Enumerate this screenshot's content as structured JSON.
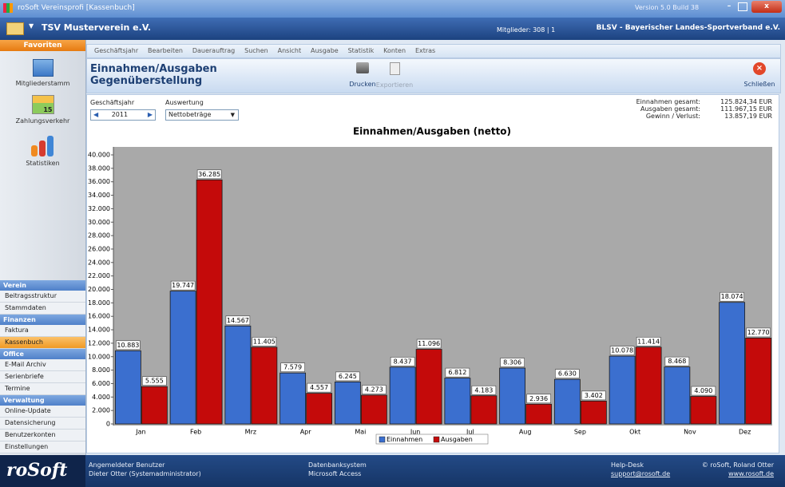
{
  "window": {
    "title": "roSoft Vereinsprofi [Kassenbuch]",
    "version": "Version 5.0  Build 38"
  },
  "club_bar": {
    "club": "TSV Musterverein e.V.",
    "members": "Mitglieder: 308 | 1",
    "association": "BLSV - Bayerischer Landes-Sportverband e.V."
  },
  "sidebar": {
    "favorites_title": "Favoriten",
    "favorites": [
      {
        "label": "Mitgliederstamm"
      },
      {
        "label": "Zahlungsverkehr",
        "badge": "15"
      },
      {
        "label": "Statistiken"
      }
    ],
    "sections": [
      {
        "title": "Verein",
        "items": [
          "Beitragsstruktur",
          "Stammdaten"
        ]
      },
      {
        "title": "Finanzen",
        "items": [
          "Faktura",
          "Kassenbuch"
        ]
      },
      {
        "title": "Office",
        "items": [
          "E-Mail Archiv",
          "Serienbriefe",
          "Termine"
        ]
      },
      {
        "title": "Verwaltung",
        "items": [
          "Online-Update",
          "Datensicherung",
          "Benutzerkonten",
          "Einstellungen"
        ]
      }
    ],
    "logo": "roSoft"
  },
  "menu": [
    "Geschäftsjahr",
    "Bearbeiten",
    "Dauerauftrag",
    "Suchen",
    "Ansicht",
    "Ausgabe",
    "Statistik",
    "Konten",
    "Extras"
  ],
  "header": {
    "title": "Einnahmen/Ausgaben",
    "subtitle": "Gegenüberstellung",
    "print": "Drucken",
    "export": "Exportieren",
    "close": "Schließen"
  },
  "filters": {
    "year_label": "Geschäftsjahr",
    "year": "2011",
    "evaluation_label": "Auswertung",
    "evaluation": "Nettobeträge"
  },
  "summary": [
    {
      "label": "Einnahmen gesamt:",
      "value": "125.824,34 EUR"
    },
    {
      "label": "Ausgaben gesamt:",
      "value": "111.967,15 EUR"
    },
    {
      "label": "Gewinn / Verlust:",
      "value": "13.857,19 EUR"
    }
  ],
  "chart_data": {
    "type": "bar",
    "title": "Einnahmen/Ausgaben (netto)",
    "categories": [
      "Jan",
      "Feb",
      "Mrz",
      "Apr",
      "Mai",
      "Jun",
      "Jul",
      "Aug",
      "Sep",
      "Okt",
      "Nov",
      "Dez"
    ],
    "series": [
      {
        "name": "Einnahmen",
        "color": "#3b6fcf",
        "values": [
          10883,
          19747,
          14567,
          7579,
          6245,
          8437,
          6812,
          8306,
          6630,
          10078,
          8468,
          18074
        ],
        "value_labels": [
          "10.883",
          "19.747",
          "14.567",
          "7.579",
          "6.245",
          "8.437",
          "6.812",
          "8.306",
          "6.630",
          "10.078",
          "8.468",
          "18.074"
        ]
      },
      {
        "name": "Ausgaben",
        "color": "#c40a0a",
        "values": [
          5555,
          36285,
          11405,
          4557,
          4273,
          11096,
          4183,
          2936,
          3402,
          11414,
          4090,
          12770
        ],
        "value_labels": [
          "5.555",
          "36.285",
          "11.405",
          "4.557",
          "4.273",
          "11.096",
          "4.183",
          "2.936",
          "3.402",
          "11.414",
          "4.090",
          "12.770"
        ]
      }
    ],
    "ylim": [
      0,
      40000
    ],
    "yticks": [
      0,
      {
        "value": 2000,
        "label": "2.000"
      },
      {
        "value": 4000,
        "label": "4.000"
      },
      {
        "value": 6000,
        "label": "6.000"
      },
      {
        "value": 8000,
        "label": "8.000"
      },
      {
        "value": 10000,
        "label": "10.000"
      },
      {
        "value": 12000,
        "label": "12.000"
      },
      {
        "value": 14000,
        "label": "14.000"
      },
      {
        "value": 16000,
        "label": "16.000"
      },
      {
        "value": 18000,
        "label": "18.000"
      },
      {
        "value": 20000,
        "label": "20.000"
      },
      {
        "value": 22000,
        "label": "22.000"
      },
      {
        "value": 24000,
        "label": "24.000"
      },
      {
        "value": 26000,
        "label": "26.000"
      },
      {
        "value": 28000,
        "label": "28.000"
      },
      {
        "value": 30000,
        "label": "30.000"
      },
      {
        "value": 32000,
        "label": "32.000"
      },
      {
        "value": 34000,
        "label": "34.000"
      },
      {
        "value": 36000,
        "label": "36.000"
      },
      {
        "value": 38000,
        "label": "38.000"
      },
      {
        "value": 40000,
        "label": "40.000"
      }
    ],
    "grid": false
  },
  "footer": {
    "user_label": "Angemeldeter Benutzer",
    "user": "Dieter Otter (Systemadministrator)",
    "db_label": "Datenbanksystem",
    "db": "Microsoft Access",
    "help_label": "Help-Desk",
    "help_mail": "support@rosoft.de",
    "copyright": "© roSoft, Roland Otter",
    "website": "www.rosoft.de"
  }
}
